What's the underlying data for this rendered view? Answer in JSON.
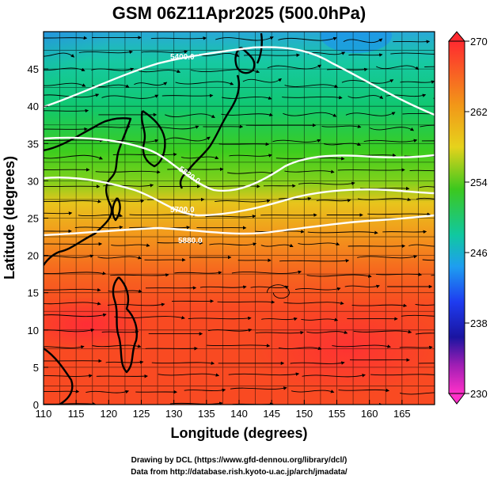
{
  "title": "GSM 06Z11Apr2025 (500.0hPa)",
  "xlabel": "Longitude (degrees)",
  "ylabel": "Latitude  (degrees)",
  "credits": [
    "Drawing by DCL (https://www.gfd-dennou.org/library/dcl/)",
    "Data from http://database.rish.kyoto-u.ac.jp/arch/jmadata/"
  ],
  "x_ticks": [
    "110",
    "115",
    "120",
    "125",
    "130",
    "135",
    "140",
    "145",
    "150",
    "155",
    "160",
    "165"
  ],
  "y_ticks": [
    "0",
    "5",
    "10",
    "15",
    "20",
    "25",
    "30",
    "35",
    "40",
    "45"
  ],
  "colorbar_ticks": [
    "270",
    "262",
    "254",
    "246",
    "238",
    "230"
  ],
  "contour_labels": [
    "5880.0",
    "5700.0",
    "5400.0",
    "5820.0"
  ],
  "colors": {
    "cold": "#0a5fe6",
    "cool": "#00cc88",
    "mid": "#22c81e",
    "warm": "#f0a01e",
    "hot": "#ff3b2a"
  },
  "chart_data": {
    "type": "heatmap",
    "title": "GSM 06Z11Apr2025 (500.0hPa)",
    "xlabel": "Longitude (degrees)",
    "ylabel": "Latitude  (degrees)",
    "xlim": [
      110,
      170
    ],
    "ylim": [
      0,
      50
    ],
    "field": "temperature (K), shaded",
    "colorbar": {
      "min": 230,
      "max": 270,
      "ticks": [
        270,
        262,
        254,
        246,
        238,
        230
      ]
    },
    "overlays": [
      "streamlines",
      "coastlines",
      "geopotential height contours (white)"
    ],
    "contours": [
      {
        "label": "5880.0",
        "approx_lat": 25
      },
      {
        "label": "5820.0",
        "approx_lat": 29
      },
      {
        "label": "5700.0",
        "approx_lat": 33
      },
      {
        "label": "5400.0",
        "approx_lat": 45
      }
    ]
  }
}
